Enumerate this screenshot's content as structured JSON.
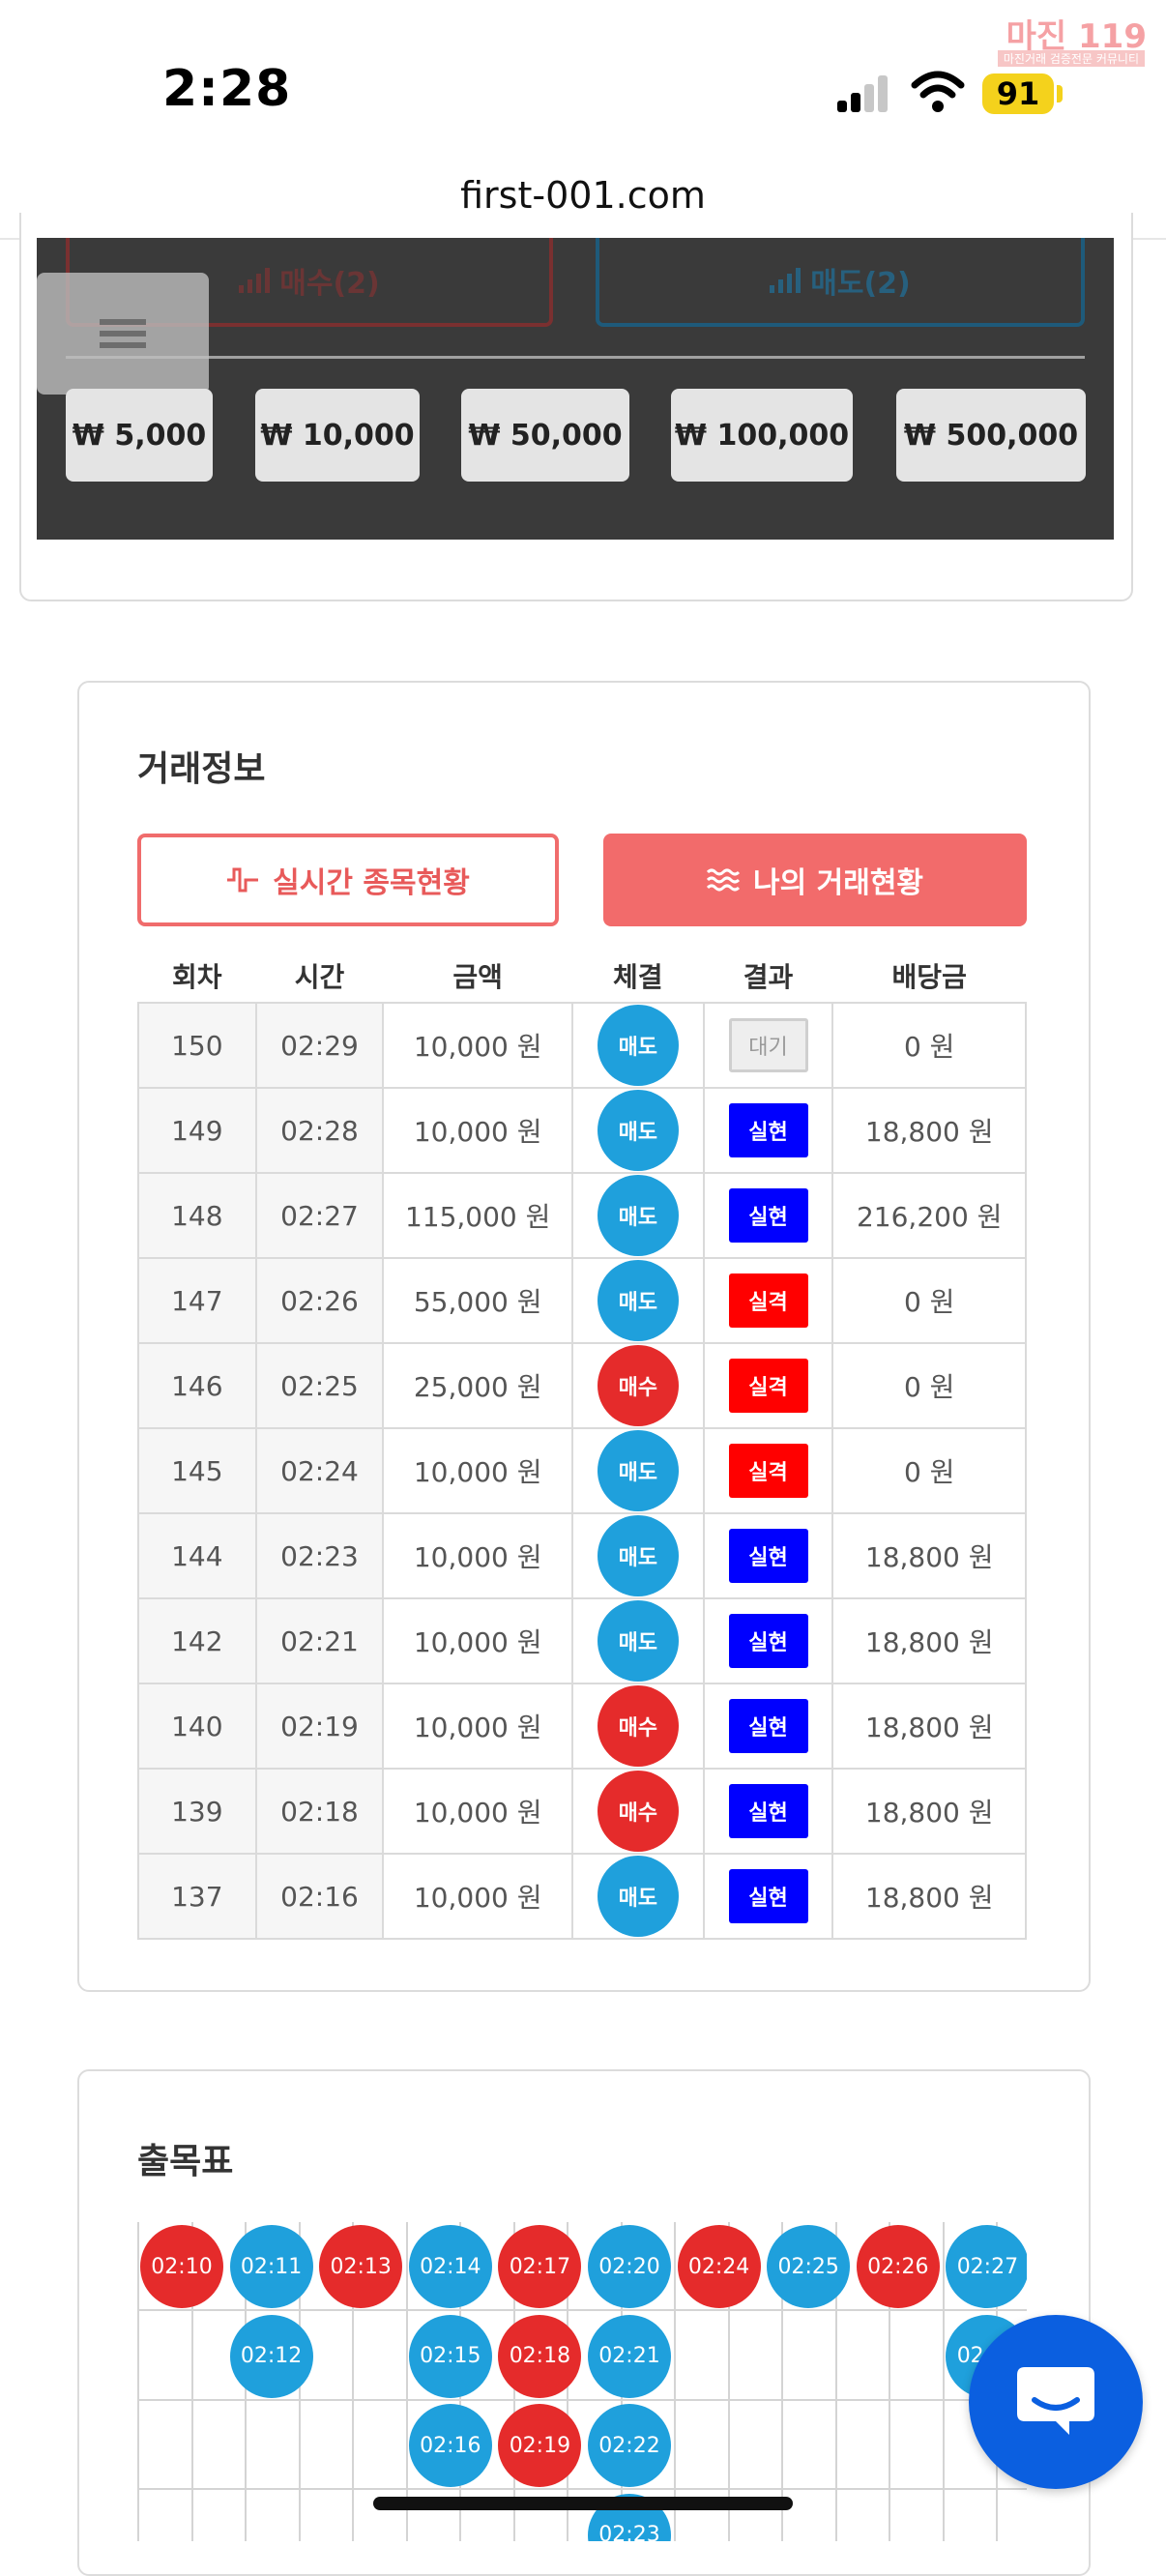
{
  "status_bar": {
    "time": "2:28",
    "battery": "91"
  },
  "watermark": {
    "main": "마진 119",
    "sub": "마진거래 검증전문 커뮤니티"
  },
  "browser": {
    "url": "first-001.com"
  },
  "trade_panel": {
    "buy_label": "매수(2)",
    "sell_label": "매도(2)",
    "amounts": [
      "₩ 5,000",
      "₩ 10,000",
      "₩ 50,000",
      "₩ 100,000",
      "₩ 500,000"
    ]
  },
  "trade_info": {
    "title": "거래정보",
    "btn_realtime": "실시간 종목현황",
    "btn_mytrade": "나의 거래현황",
    "headers": [
      "회차",
      "시간",
      "금액",
      "체결",
      "결과",
      "배당금"
    ],
    "rows": [
      {
        "round": "150",
        "time": "02:29",
        "amount": "10,000 원",
        "side": "매도",
        "side_type": "sell",
        "result": "대기",
        "result_type": "wait",
        "payout": "0 원"
      },
      {
        "round": "149",
        "time": "02:28",
        "amount": "10,000 원",
        "side": "매도",
        "side_type": "sell",
        "result": "실현",
        "result_type": "win",
        "payout": "18,800 원"
      },
      {
        "round": "148",
        "time": "02:27",
        "amount": "115,000 원",
        "side": "매도",
        "side_type": "sell",
        "result": "실현",
        "result_type": "win",
        "payout": "216,200 원"
      },
      {
        "round": "147",
        "time": "02:26",
        "amount": "55,000 원",
        "side": "매도",
        "side_type": "sell",
        "result": "실격",
        "result_type": "lose",
        "payout": "0 원"
      },
      {
        "round": "146",
        "time": "02:25",
        "amount": "25,000 원",
        "side": "매수",
        "side_type": "buy",
        "result": "실격",
        "result_type": "lose",
        "payout": "0 원"
      },
      {
        "round": "145",
        "time": "02:24",
        "amount": "10,000 원",
        "side": "매도",
        "side_type": "sell",
        "result": "실격",
        "result_type": "lose",
        "payout": "0 원"
      },
      {
        "round": "144",
        "time": "02:23",
        "amount": "10,000 원",
        "side": "매도",
        "side_type": "sell",
        "result": "실현",
        "result_type": "win",
        "payout": "18,800 원"
      },
      {
        "round": "142",
        "time": "02:21",
        "amount": "10,000 원",
        "side": "매도",
        "side_type": "sell",
        "result": "실현",
        "result_type": "win",
        "payout": "18,800 원"
      },
      {
        "round": "140",
        "time": "02:19",
        "amount": "10,000 원",
        "side": "매수",
        "side_type": "buy",
        "result": "실현",
        "result_type": "win",
        "payout": "18,800 원"
      },
      {
        "round": "139",
        "time": "02:18",
        "amount": "10,000 원",
        "side": "매수",
        "side_type": "buy",
        "result": "실현",
        "result_type": "win",
        "payout": "18,800 원"
      },
      {
        "round": "137",
        "time": "02:16",
        "amount": "10,000 원",
        "side": "매도",
        "side_type": "sell",
        "result": "실현",
        "result_type": "win",
        "payout": "18,800 원"
      }
    ]
  },
  "result_chart": {
    "title": "출목표",
    "columns": [
      [
        {
          "t": "02:10",
          "s": "buy"
        }
      ],
      [
        {
          "t": "02:11",
          "s": "sell"
        },
        {
          "t": "02:12",
          "s": "sell"
        }
      ],
      [
        {
          "t": "02:13",
          "s": "buy"
        }
      ],
      [
        {
          "t": "02:14",
          "s": "sell"
        },
        {
          "t": "02:15",
          "s": "sell"
        },
        {
          "t": "02:16",
          "s": "sell"
        }
      ],
      [
        {
          "t": "02:17",
          "s": "buy"
        },
        {
          "t": "02:18",
          "s": "buy"
        },
        {
          "t": "02:19",
          "s": "buy"
        }
      ],
      [
        {
          "t": "02:20",
          "s": "sell"
        },
        {
          "t": "02:21",
          "s": "sell"
        },
        {
          "t": "02:22",
          "s": "sell"
        },
        {
          "t": "02:23",
          "s": "sell"
        }
      ],
      [
        {
          "t": "02:24",
          "s": "buy"
        }
      ],
      [
        {
          "t": "02:25",
          "s": "sell"
        }
      ],
      [
        {
          "t": "02:26",
          "s": "buy"
        }
      ],
      [
        {
          "t": "02:27",
          "s": "sell"
        },
        {
          "t": "02:28",
          "s": "sell"
        }
      ]
    ]
  },
  "colors": {
    "buy": "#e52b2b",
    "sell": "#1fa0dc",
    "win": "#0000ff",
    "lose": "#ff0000",
    "accent": "#f26b6b"
  }
}
